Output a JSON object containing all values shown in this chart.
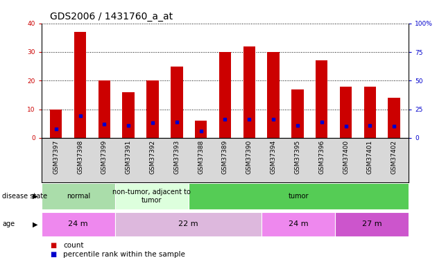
{
  "title": "GDS2006 / 1431760_a_at",
  "samples": [
    "GSM37397",
    "GSM37398",
    "GSM37399",
    "GSM37391",
    "GSM37392",
    "GSM37393",
    "GSM37388",
    "GSM37389",
    "GSM37390",
    "GSM37394",
    "GSM37395",
    "GSM37396",
    "GSM37400",
    "GSM37401",
    "GSM37402"
  ],
  "counts": [
    10,
    37,
    20,
    16,
    20,
    25,
    6,
    30,
    32,
    30,
    17,
    27,
    18,
    18,
    14
  ],
  "percentiles": [
    8,
    19,
    12,
    11,
    13,
    14,
    6,
    16,
    16,
    16,
    11,
    14,
    10,
    11,
    10
  ],
  "bar_color": "#cc0000",
  "percentile_color": "#0000cc",
  "ylim_left": [
    0,
    40
  ],
  "ylim_right": [
    0,
    100
  ],
  "yticks_left": [
    0,
    10,
    20,
    30,
    40
  ],
  "yticks_right": [
    0,
    25,
    50,
    75,
    100
  ],
  "ytick_labels_right": [
    "0",
    "25",
    "50",
    "75",
    "100%"
  ],
  "disease_state_groups": [
    {
      "label": "normal",
      "start": 0,
      "end": 3,
      "color": "#aaddaa"
    },
    {
      "label": "non-tumor, adjacent to\ntumor",
      "start": 3,
      "end": 6,
      "color": "#ddffdd"
    },
    {
      "label": "tumor",
      "start": 6,
      "end": 15,
      "color": "#55cc55"
    }
  ],
  "age_groups": [
    {
      "label": "24 m",
      "start": 0,
      "end": 3,
      "color": "#ee88ee"
    },
    {
      "label": "22 m",
      "start": 3,
      "end": 9,
      "color": "#ddb8dd"
    },
    {
      "label": "24 m",
      "start": 9,
      "end": 12,
      "color": "#ee88ee"
    },
    {
      "label": "27 m",
      "start": 12,
      "end": 15,
      "color": "#cc55cc"
    }
  ],
  "disease_state_label": "disease state",
  "age_label": "age",
  "legend_count_label": "count",
  "legend_percentile_label": "percentile rank within the sample",
  "bg_color": "#ffffff",
  "plot_bg_color": "#ffffff",
  "xtick_area_color": "#d8d8d8",
  "grid_color": "#000000",
  "title_fontsize": 10,
  "tick_fontsize": 6.5,
  "label_fontsize": 8
}
